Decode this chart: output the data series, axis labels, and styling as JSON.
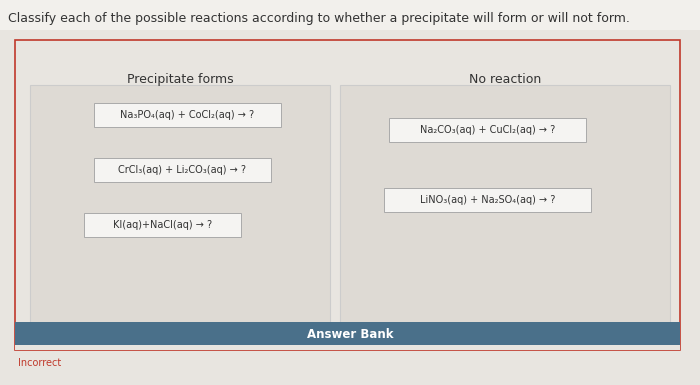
{
  "title": "Classify each of the possible reactions according to whether a precipitate will form or will not form.",
  "title_fontsize": 9,
  "page_bg": "#d4d4d4",
  "content_bg": "#f0eeec",
  "outer_border_color": "#c0392b",
  "left_header": "Precipitate forms",
  "right_header": "No reaction",
  "header_fontsize": 9,
  "left_reactions": [
    "Na₃PO₄(aq) + CoCl₂(aq) → ?",
    "CrCl₃(aq) + Li₂CO₃(aq) → ?",
    "KI(aq)+NaCl(aq) → ?"
  ],
  "right_reactions": [
    "Na₂CO₃(aq) + CuCl₂(aq) → ?",
    "LiNO₃(aq) + Na₂SO₄(aq) → ?"
  ],
  "answer_bank_text": "Answer Bank",
  "answer_bank_color": "#4a708a",
  "answer_bank_text_color": "#ffffff",
  "box_bg": "#f5f4f2",
  "box_border": "#aaaaaa",
  "incorrect_text": "Incorrect",
  "incorrect_color": "#c0392b",
  "reaction_fontsize": 7,
  "inner_panel_bg": "#e8e6e2",
  "inner_panel_border": "#cccccc"
}
